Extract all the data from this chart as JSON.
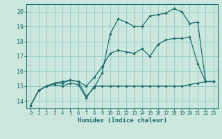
{
  "background_color": "#cce8de",
  "grid_color": "#99cccc",
  "line_color": "#1a6b6b",
  "xlabel": "Humidex (Indice chaleur)",
  "xlim": [
    -0.5,
    23.5
  ],
  "ylim": [
    13.5,
    20.5
  ],
  "yticks": [
    14,
    15,
    16,
    17,
    18,
    19,
    20
  ],
  "xticks": [
    0,
    1,
    2,
    3,
    4,
    5,
    6,
    7,
    8,
    9,
    10,
    11,
    12,
    13,
    14,
    15,
    16,
    17,
    18,
    19,
    20,
    21,
    22,
    23
  ],
  "series1_x": [
    0,
    1,
    2,
    3,
    4,
    5,
    6,
    7,
    8,
    9,
    10,
    11,
    12,
    13,
    14,
    15,
    16,
    17,
    18,
    19,
    20,
    21,
    22,
    23
  ],
  "series1_y": [
    13.7,
    14.7,
    15.0,
    15.1,
    15.0,
    15.2,
    15.1,
    14.2,
    15.0,
    15.0,
    15.0,
    15.0,
    15.0,
    15.0,
    15.0,
    15.0,
    15.0,
    15.0,
    15.0,
    15.0,
    15.1,
    15.2,
    15.3,
    15.3
  ],
  "series2_x": [
    0,
    1,
    2,
    3,
    4,
    5,
    6,
    7,
    8,
    9,
    10,
    11,
    12,
    13,
    14,
    15,
    16,
    17,
    18,
    19,
    20,
    21,
    22,
    23
  ],
  "series2_y": [
    13.7,
    14.7,
    15.0,
    15.2,
    15.2,
    15.4,
    15.3,
    15.0,
    15.6,
    16.3,
    17.2,
    17.4,
    17.3,
    17.2,
    17.5,
    17.0,
    17.8,
    18.1,
    18.2,
    18.2,
    18.3,
    16.5,
    15.3,
    15.3
  ],
  "series3_x": [
    0,
    1,
    2,
    3,
    4,
    5,
    6,
    7,
    8,
    9,
    10,
    11,
    12,
    13,
    14,
    15,
    16,
    17,
    18,
    19,
    20,
    21,
    22,
    23
  ],
  "series3_y": [
    13.7,
    14.7,
    15.0,
    15.2,
    15.3,
    15.4,
    15.3,
    14.3,
    14.9,
    15.9,
    18.5,
    19.5,
    19.3,
    19.0,
    19.0,
    19.7,
    19.8,
    19.9,
    20.2,
    20.0,
    19.2,
    19.3,
    15.3,
    15.3
  ]
}
